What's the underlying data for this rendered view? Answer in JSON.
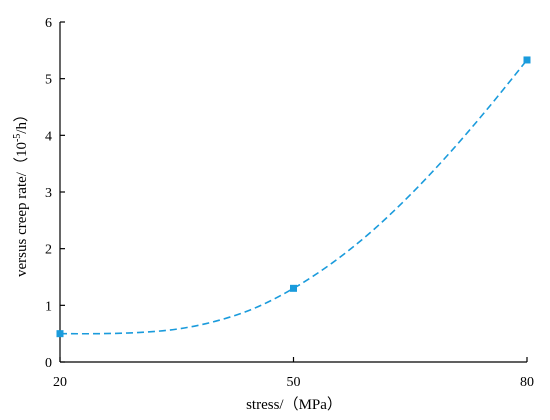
{
  "chart_data": {
    "type": "line",
    "title": "",
    "xlabel": "stress/（MPa）",
    "ylabel_main": "versus creep rate/（",
    "ylabel_base": "10",
    "ylabel_exp": "-5",
    "ylabel_unit": "/h）",
    "xlim": [
      20,
      80
    ],
    "ylim": [
      0,
      6
    ],
    "x_ticks": [
      "20",
      "50",
      "80"
    ],
    "y_ticks": [
      "0",
      "1",
      "2",
      "3",
      "4",
      "5",
      "6"
    ],
    "grid": false,
    "legend": "none",
    "series": [
      {
        "points": [
          {
            "x": 20,
            "y": 0.5
          },
          {
            "x": 50,
            "y": 1.3
          },
          {
            "x": 80,
            "y": 5.33
          }
        ],
        "fit_curve": [
          {
            "x": 20,
            "y": 0.5
          },
          {
            "x": 25,
            "y": 0.5
          },
          {
            "x": 30,
            "y": 0.52
          },
          {
            "x": 35,
            "y": 0.58
          },
          {
            "x": 40,
            "y": 0.72
          },
          {
            "x": 45,
            "y": 0.95
          },
          {
            "x": 50,
            "y": 1.3
          },
          {
            "x": 55,
            "y": 1.75
          },
          {
            "x": 60,
            "y": 2.3
          },
          {
            "x": 65,
            "y": 2.95
          },
          {
            "x": 70,
            "y": 3.68
          },
          {
            "x": 75,
            "y": 4.48
          },
          {
            "x": 80,
            "y": 5.33
          }
        ]
      }
    ],
    "colors": {
      "series": "#1a9bdc",
      "axis": "#000000"
    }
  }
}
